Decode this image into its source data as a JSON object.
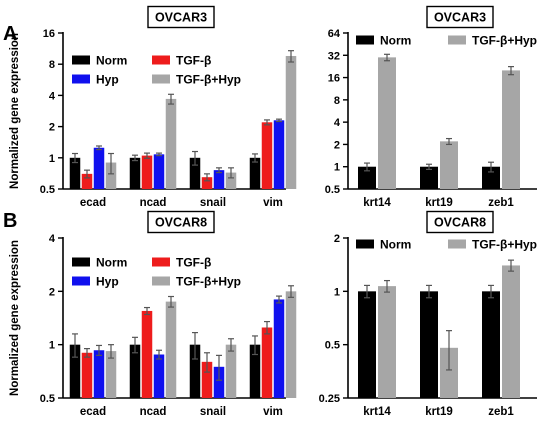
{
  "panel_labels": [
    "A",
    "B"
  ],
  "colors": {
    "Norm": "#000000",
    "Hyp": "#1010ee",
    "TGF-β": "#ee1c1c",
    "TGF-β+Hyp": "#a6a6a6"
  },
  "chart_data": [
    {
      "type": "bar",
      "title": "OVCAR3",
      "ylabel": "Normalized gene expression",
      "yscale": "log2",
      "ylim": [
        0.5,
        16
      ],
      "yticks": [
        0.5,
        1,
        2,
        4,
        8,
        16
      ],
      "ytick_labels": [
        "0.5",
        "1",
        "2",
        "4",
        "8",
        "16"
      ],
      "categories": [
        "ecad",
        "ncad",
        "snail",
        "vim"
      ],
      "legend_order": [
        "Norm",
        "TGF-β",
        "Hyp",
        "TGF-β+Hyp"
      ],
      "series": [
        {
          "name": "Norm",
          "values": [
            1.0,
            1.0,
            1.0,
            1.0
          ],
          "errors": [
            0.1,
            0.06,
            0.15,
            0.09
          ]
        },
        {
          "name": "TGF-β",
          "values": [
            0.7,
            1.05,
            0.65,
            2.2
          ],
          "errors": [
            0.06,
            0.06,
            0.05,
            0.12
          ]
        },
        {
          "name": "Hyp",
          "values": [
            1.25,
            1.08,
            0.76,
            2.3
          ],
          "errors": [
            0.05,
            0.03,
            0.04,
            0.06
          ]
        },
        {
          "name": "TGF-β+Hyp",
          "values": [
            0.9,
            3.7,
            0.72,
            9.6
          ],
          "errors": [
            0.2,
            0.4,
            0.08,
            1.2
          ]
        }
      ]
    },
    {
      "type": "bar",
      "title": "OVCAR3",
      "ylabel": "",
      "yscale": "log2",
      "ylim": [
        0.5,
        64
      ],
      "yticks": [
        0.5,
        1,
        2,
        4,
        8,
        16,
        32,
        64
      ],
      "ytick_labels": [
        "0.5",
        "1",
        "2",
        "4",
        "8",
        "16",
        "32",
        "64"
      ],
      "categories": [
        "krt14",
        "krt19",
        "zeb1"
      ],
      "legend_order": [
        "Norm",
        "TGF-β+Hyp"
      ],
      "series": [
        {
          "name": "Norm",
          "values": [
            1.0,
            1.0,
            1.0
          ],
          "errors": [
            0.12,
            0.08,
            0.15
          ]
        },
        {
          "name": "TGF-β+Hyp",
          "values": [
            30,
            2.2,
            20
          ],
          "errors": [
            3,
            0.2,
            2.5
          ]
        }
      ]
    },
    {
      "type": "bar",
      "title": "OVCAR8",
      "ylabel": "Normalized gene expression",
      "yscale": "log2",
      "ylim": [
        0.5,
        4
      ],
      "yticks": [
        0.5,
        1,
        2,
        4
      ],
      "ytick_labels": [
        "0.5",
        "1",
        "2",
        "4"
      ],
      "categories": [
        "ecad",
        "ncad",
        "snail",
        "vim"
      ],
      "legend_order": [
        "Norm",
        "TGF-β",
        "Hyp",
        "TGF-β+Hyp"
      ],
      "series": [
        {
          "name": "Norm",
          "values": [
            1.0,
            1.0,
            1.0,
            1.0
          ],
          "errors": [
            0.15,
            0.1,
            0.17,
            0.12
          ]
        },
        {
          "name": "TGF-β",
          "values": [
            0.9,
            1.55,
            0.8,
            1.25
          ],
          "errors": [
            0.05,
            0.07,
            0.1,
            0.1
          ]
        },
        {
          "name": "Hyp",
          "values": [
            0.93,
            0.88,
            0.75,
            1.8
          ],
          "errors": [
            0.06,
            0.05,
            0.12,
            0.08
          ]
        },
        {
          "name": "TGF-β+Hyp",
          "values": [
            0.92,
            1.75,
            1.0,
            2.0
          ],
          "errors": [
            0.08,
            0.12,
            0.08,
            0.15
          ]
        }
      ]
    },
    {
      "type": "bar",
      "title": "OVCAR8",
      "ylabel": "",
      "yscale": "log2",
      "ylim": [
        0.25,
        2
      ],
      "yticks": [
        0.25,
        0.5,
        1,
        2
      ],
      "ytick_labels": [
        "0.25",
        "0.5",
        "1",
        "2"
      ],
      "categories": [
        "krt14",
        "krt19",
        "zeb1"
      ],
      "legend_order": [
        "Norm",
        "TGF-β+Hyp"
      ],
      "series": [
        {
          "name": "Norm",
          "values": [
            1.0,
            1.0,
            1.0
          ],
          "errors": [
            0.08,
            0.08,
            0.08
          ]
        },
        {
          "name": "TGF-β+Hyp",
          "values": [
            1.07,
            0.48,
            1.4
          ],
          "errors": [
            0.08,
            0.12,
            0.1
          ]
        }
      ]
    }
  ]
}
